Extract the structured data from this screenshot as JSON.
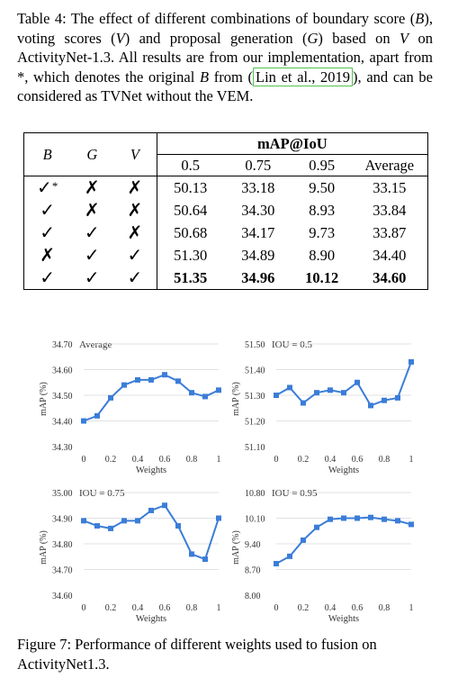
{
  "table_caption": {
    "label": "Table 4:",
    "text_1": " The effect of different combinations of boundary score (",
    "B": "B",
    "text_2": "), voting scores (",
    "V": "V",
    "text_3": ") and proposal generation (",
    "G": "G",
    "text_4": ") based on ",
    "text_5": " on ActivityNet-1.3. All results are from our implementation, apart from *, which denotes the original ",
    "text_6": " from (",
    "cite": "Lin et al., 2019",
    "text_7": "), and can be considered as TVNet without the VEM."
  },
  "table": {
    "col_B": "B",
    "col_G": "G",
    "col_V": "V",
    "group_header": "mAP@IoU",
    "sub_headers": [
      "0.5",
      "0.75",
      "0.95",
      "Average"
    ],
    "rows": [
      {
        "B": "✓",
        "B_star": "*",
        "G": "✗",
        "V": "✗",
        "vals": [
          "50.13",
          "33.18",
          "9.50",
          "33.15"
        ],
        "bold": false
      },
      {
        "B": "✓",
        "B_star": "",
        "G": "✗",
        "V": "✗",
        "vals": [
          "50.64",
          "34.30",
          "8.93",
          "33.84"
        ],
        "bold": false
      },
      {
        "B": "✓",
        "B_star": "",
        "G": "✓",
        "V": "✗",
        "vals": [
          "50.68",
          "34.17",
          "9.73",
          "33.87"
        ],
        "bold": false
      },
      {
        "B": "✗",
        "B_star": "",
        "G": "✓",
        "V": "✓",
        "vals": [
          "51.30",
          "34.89",
          "8.90",
          "34.40"
        ],
        "bold": false
      },
      {
        "B": "✓",
        "B_star": "",
        "G": "✓",
        "V": "✓",
        "vals": [
          "51.35",
          "34.96",
          "10.12",
          "34.60"
        ],
        "bold": true
      }
    ]
  },
  "chart_data": [
    {
      "type": "line",
      "title": "Average",
      "xlabel": "Weights",
      "ylabel": "mAP (%)",
      "xticks": [
        "0",
        "0.2",
        "0.4",
        "0.6",
        "0.8",
        "1"
      ],
      "yticks": [
        "34.30",
        "34.40",
        "34.50",
        "34.60",
        "34.70"
      ],
      "ylim": [
        34.3,
        34.7
      ],
      "x": [
        0,
        0.1,
        0.2,
        0.3,
        0.4,
        0.5,
        0.6,
        0.7,
        0.8,
        0.9,
        1.0
      ],
      "values": [
        34.4,
        34.42,
        34.49,
        34.54,
        34.56,
        34.56,
        34.58,
        34.555,
        34.51,
        34.495,
        34.52
      ],
      "color": "#3b7dd8",
      "grid": true
    },
    {
      "type": "line",
      "title": "IOU = 0.5",
      "xlabel": "Weights",
      "ylabel": "mAP (%)",
      "xticks": [
        "0",
        "0.2",
        "0.4",
        "0.6",
        "0.8",
        "1"
      ],
      "yticks": [
        "51.10",
        "51.20",
        "51.30",
        "51.40",
        "51.50"
      ],
      "ylim": [
        51.1,
        51.5
      ],
      "x": [
        0,
        0.1,
        0.2,
        0.3,
        0.4,
        0.5,
        0.6,
        0.7,
        0.8,
        0.9,
        1.0
      ],
      "values": [
        51.3,
        51.33,
        51.27,
        51.31,
        51.32,
        51.31,
        51.35,
        51.26,
        51.28,
        51.29,
        51.43
      ],
      "color": "#3b7dd8",
      "grid": true
    },
    {
      "type": "line",
      "title": "IOU = 0.75",
      "xlabel": "Weights",
      "ylabel": "mAP (%)",
      "xticks": [
        "0",
        "0.2",
        "0.4",
        "0.6",
        "0.8",
        "1"
      ],
      "yticks": [
        "34.60",
        "34.70",
        "34.80",
        "34.90",
        "35.00"
      ],
      "ylim": [
        34.6,
        35.0
      ],
      "x": [
        0,
        0.1,
        0.2,
        0.3,
        0.4,
        0.5,
        0.6,
        0.7,
        0.8,
        0.9,
        1.0
      ],
      "values": [
        34.89,
        34.87,
        34.86,
        34.89,
        34.89,
        34.93,
        34.95,
        34.87,
        34.76,
        34.74,
        34.9
      ],
      "color": "#3b7dd8",
      "grid": true
    },
    {
      "type": "line",
      "title": "IOU = 0.95",
      "xlabel": "Weights",
      "ylabel": "mAP (%)",
      "xticks": [
        "0",
        "0.2",
        "0.4",
        "0.6",
        "0.8",
        "1"
      ],
      "yticks": [
        "8.00",
        "8.70",
        "9.40",
        "10.10",
        "10.80"
      ],
      "ylim": [
        8.0,
        10.8
      ],
      "x": [
        0,
        0.1,
        0.2,
        0.3,
        0.4,
        0.5,
        0.6,
        0.7,
        0.8,
        0.9,
        1.0
      ],
      "values": [
        8.86,
        9.06,
        9.5,
        9.85,
        10.07,
        10.1,
        10.1,
        10.12,
        10.07,
        10.03,
        9.93
      ],
      "color": "#3b7dd8",
      "grid": true
    }
  ],
  "figure_caption": {
    "label": "Figure 7:",
    "text": " Performance of different weights used to fusion on ActivityNet1.3."
  }
}
